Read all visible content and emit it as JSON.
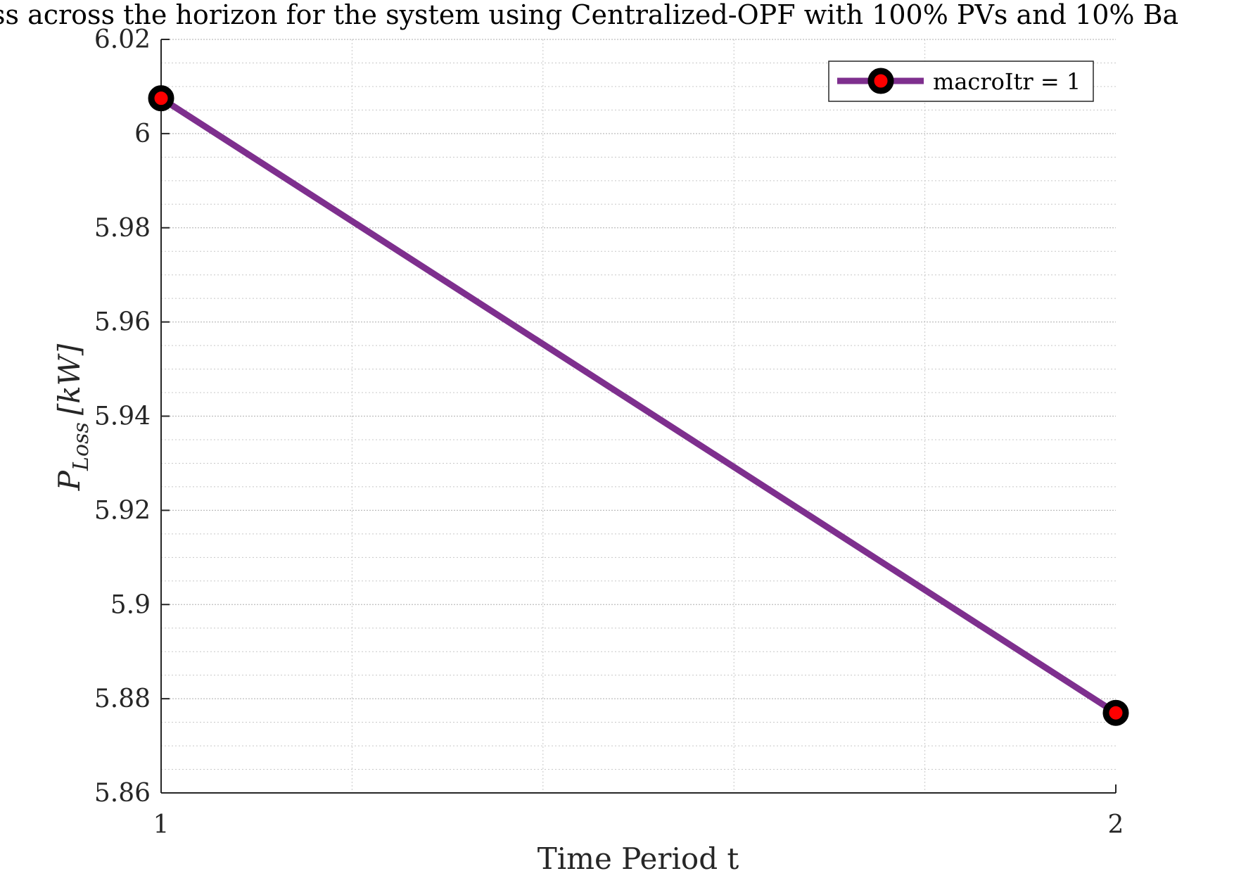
{
  "chart_data": {
    "type": "line",
    "title": "ss across the horizon for the system using Centralized-OPF with 100% PVs and 10% Ba",
    "xlabel": "Time Period t",
    "ylabel": "P_Loss [kW]",
    "ylabel_parts": {
      "main": "P",
      "subscript": "Loss",
      "unit": "[kW]"
    },
    "xlim": [
      1,
      2
    ],
    "ylim": [
      5.86,
      6.02
    ],
    "x_ticks": [
      1,
      2
    ],
    "x_tick_labels": [
      "1",
      "2"
    ],
    "y_ticks": [
      5.86,
      5.88,
      5.9,
      5.92,
      5.94,
      5.96,
      5.98,
      6.0,
      6.02
    ],
    "y_tick_labels": [
      "5.86",
      "5.88",
      "5.9",
      "5.92",
      "5.94",
      "5.96",
      "5.98",
      "6",
      "6.02"
    ],
    "x_minor_ticks": [
      1.2,
      1.4,
      1.6,
      1.8
    ],
    "y_minor_step": 0.005,
    "grid": true,
    "minor_grid": true,
    "legend_position": "top-right",
    "series": [
      {
        "name": "macroItr = 1",
        "x": [
          1,
          2
        ],
        "values": [
          6.0075,
          5.877
        ],
        "line_color": "#7e2f8e",
        "marker_edge_color": "#000000",
        "marker_face_color": "#ff0000"
      }
    ]
  }
}
